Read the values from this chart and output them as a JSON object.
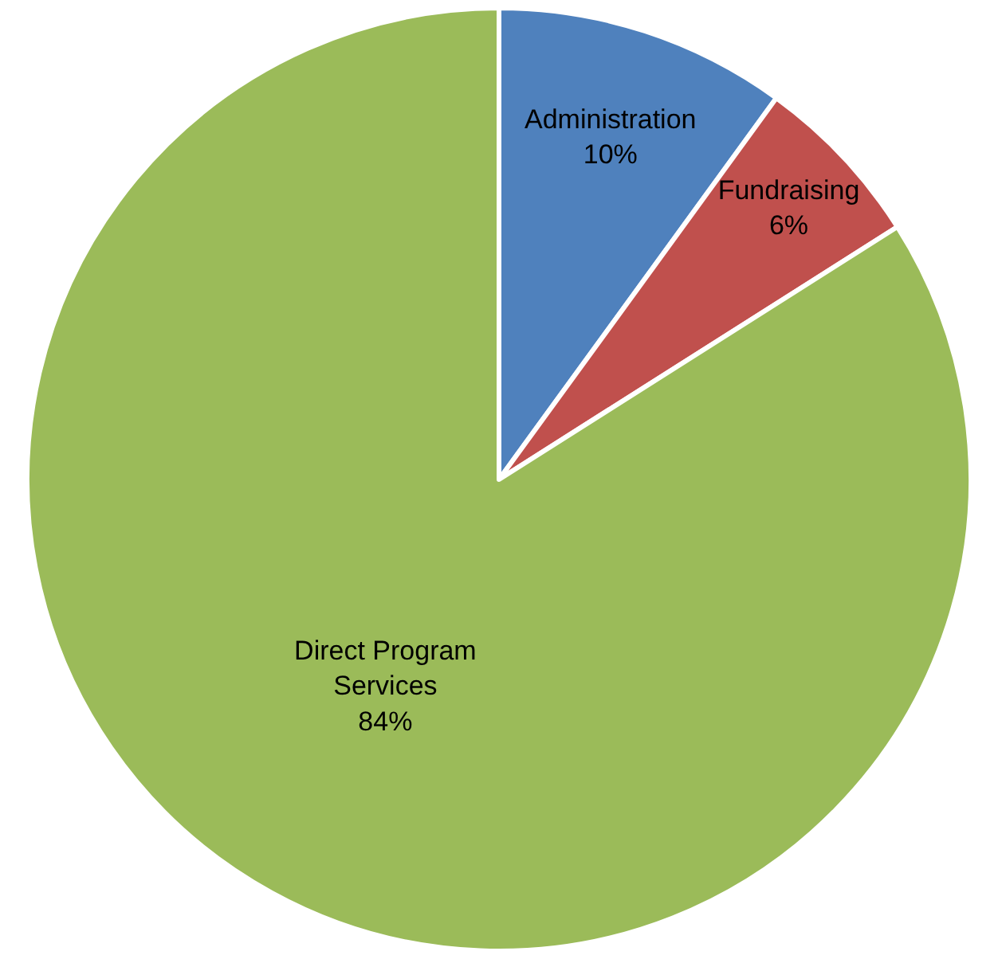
{
  "chart_data": {
    "type": "pie",
    "categories": [
      "Administration",
      "Fundraising",
      "Direct Program Services"
    ],
    "values": [
      10,
      6,
      84
    ],
    "colors": [
      "#4f81bd",
      "#c0504d",
      "#9bbb59"
    ],
    "value_labels": [
      "10%",
      "6%",
      "84%"
    ],
    "legend": false
  }
}
